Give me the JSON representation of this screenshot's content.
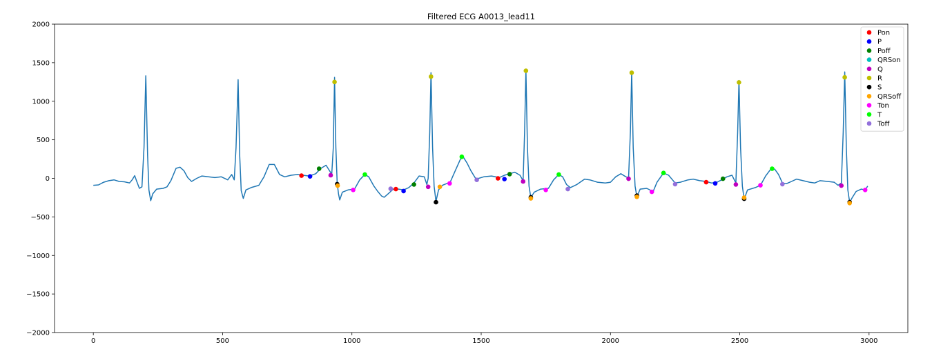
{
  "chart_data": {
    "type": "line",
    "title": "Filtered ECG A0013_lead11",
    "xlabel": "",
    "ylabel": "",
    "xlim": [
      -150,
      3150
    ],
    "ylim": [
      -2000,
      2000
    ],
    "x_ticks": [
      0,
      500,
      1000,
      1500,
      2000,
      2500,
      3000
    ],
    "y_ticks": [
      -2000,
      -1500,
      -1000,
      -500,
      0,
      500,
      1000,
      1500,
      2000
    ],
    "grid": false,
    "legend_position": "top-right",
    "line_color": "#1f77b4",
    "signal": {
      "name": "",
      "points": [
        [
          0,
          -90
        ],
        [
          20,
          -85
        ],
        [
          40,
          -50
        ],
        [
          60,
          -30
        ],
        [
          80,
          -20
        ],
        [
          100,
          -40
        ],
        [
          120,
          -45
        ],
        [
          140,
          -60
        ],
        [
          150,
          -20
        ],
        [
          160,
          35
        ],
        [
          168,
          -40
        ],
        [
          178,
          -130
        ],
        [
          188,
          -110
        ],
        [
          196,
          400
        ],
        [
          203,
          1330
        ],
        [
          210,
          300
        ],
        [
          215,
          -150
        ],
        [
          222,
          -290
        ],
        [
          230,
          -200
        ],
        [
          245,
          -140
        ],
        [
          270,
          -130
        ],
        [
          285,
          -110
        ],
        [
          300,
          -30
        ],
        [
          320,
          130
        ],
        [
          335,
          145
        ],
        [
          350,
          100
        ],
        [
          365,
          10
        ],
        [
          380,
          -40
        ],
        [
          400,
          0
        ],
        [
          420,
          30
        ],
        [
          445,
          20
        ],
        [
          470,
          10
        ],
        [
          495,
          20
        ],
        [
          520,
          -20
        ],
        [
          535,
          50
        ],
        [
          545,
          -20
        ],
        [
          552,
          400
        ],
        [
          560,
          1280
        ],
        [
          566,
          300
        ],
        [
          572,
          -160
        ],
        [
          580,
          -260
        ],
        [
          590,
          -150
        ],
        [
          610,
          -120
        ],
        [
          640,
          -90
        ],
        [
          660,
          20
        ],
        [
          680,
          180
        ],
        [
          700,
          180
        ],
        [
          720,
          50
        ],
        [
          740,
          20
        ],
        [
          765,
          40
        ],
        [
          790,
          50
        ],
        [
          810,
          40
        ],
        [
          835,
          30
        ],
        [
          860,
          60
        ],
        [
          880,
          130
        ],
        [
          900,
          170
        ],
        [
          915,
          90
        ],
        [
          922,
          50
        ],
        [
          928,
          400
        ],
        [
          933,
          1310
        ],
        [
          938,
          400
        ],
        [
          943,
          -60
        ],
        [
          948,
          -200
        ],
        [
          953,
          -280
        ],
        [
          963,
          -180
        ],
        [
          985,
          -150
        ],
        [
          1010,
          -140
        ],
        [
          1030,
          -20
        ],
        [
          1050,
          50
        ],
        [
          1065,
          20
        ],
        [
          1085,
          -100
        ],
        [
          1100,
          -170
        ],
        [
          1115,
          -230
        ],
        [
          1125,
          -245
        ],
        [
          1140,
          -200
        ],
        [
          1160,
          -140
        ],
        [
          1180,
          -140
        ],
        [
          1200,
          -150
        ],
        [
          1220,
          -120
        ],
        [
          1240,
          -60
        ],
        [
          1260,
          30
        ],
        [
          1280,
          20
        ],
        [
          1290,
          -80
        ],
        [
          1295,
          0
        ],
        [
          1301,
          600
        ],
        [
          1306,
          1370
        ],
        [
          1312,
          400
        ],
        [
          1318,
          -100
        ],
        [
          1325,
          -300
        ],
        [
          1335,
          -150
        ],
        [
          1350,
          -90
        ],
        [
          1380,
          -50
        ],
        [
          1400,
          100
        ],
        [
          1420,
          250
        ],
        [
          1432,
          270
        ],
        [
          1445,
          200
        ],
        [
          1460,
          100
        ],
        [
          1480,
          -10
        ],
        [
          1510,
          20
        ],
        [
          1540,
          30
        ],
        [
          1570,
          10
        ],
        [
          1590,
          40
        ],
        [
          1610,
          60
        ],
        [
          1630,
          80
        ],
        [
          1650,
          40
        ],
        [
          1662,
          -30
        ],
        [
          1668,
          600
        ],
        [
          1673,
          1410
        ],
        [
          1679,
          400
        ],
        [
          1685,
          -100
        ],
        [
          1692,
          -250
        ],
        [
          1705,
          -180
        ],
        [
          1730,
          -140
        ],
        [
          1760,
          -130
        ],
        [
          1780,
          -20
        ],
        [
          1800,
          50
        ],
        [
          1815,
          20
        ],
        [
          1830,
          -80
        ],
        [
          1845,
          -120
        ],
        [
          1870,
          -80
        ],
        [
          1900,
          -10
        ],
        [
          1920,
          -20
        ],
        [
          1950,
          -50
        ],
        [
          1980,
          -60
        ],
        [
          2000,
          -50
        ],
        [
          2020,
          20
        ],
        [
          2040,
          60
        ],
        [
          2060,
          20
        ],
        [
          2070,
          10
        ],
        [
          2077,
          600
        ],
        [
          2082,
          1380
        ],
        [
          2088,
          400
        ],
        [
          2095,
          -100
        ],
        [
          2102,
          -240
        ],
        [
          2115,
          -140
        ],
        [
          2140,
          -130
        ],
        [
          2165,
          -170
        ],
        [
          2180,
          -50
        ],
        [
          2205,
          70
        ],
        [
          2225,
          40
        ],
        [
          2250,
          -60
        ],
        [
          2270,
          -50
        ],
        [
          2300,
          -20
        ],
        [
          2320,
          -10
        ],
        [
          2345,
          -30
        ],
        [
          2370,
          -40
        ],
        [
          2390,
          -60
        ],
        [
          2410,
          -55
        ],
        [
          2430,
          -20
        ],
        [
          2450,
          20
        ],
        [
          2470,
          40
        ],
        [
          2485,
          -60
        ],
        [
          2492,
          600
        ],
        [
          2497,
          1270
        ],
        [
          2503,
          400
        ],
        [
          2510,
          -100
        ],
        [
          2517,
          -270
        ],
        [
          2530,
          -150
        ],
        [
          2560,
          -120
        ],
        [
          2580,
          -90
        ],
        [
          2600,
          30
        ],
        [
          2620,
          120
        ],
        [
          2635,
          120
        ],
        [
          2650,
          50
        ],
        [
          2665,
          -60
        ],
        [
          2680,
          -70
        ],
        [
          2700,
          -40
        ],
        [
          2720,
          -10
        ],
        [
          2745,
          -30
        ],
        [
          2770,
          -50
        ],
        [
          2790,
          -60
        ],
        [
          2810,
          -30
        ],
        [
          2840,
          -40
        ],
        [
          2865,
          -50
        ],
        [
          2880,
          -90
        ],
        [
          2893,
          -60
        ],
        [
          2900,
          600
        ],
        [
          2906,
          1380
        ],
        [
          2912,
          400
        ],
        [
          2918,
          -150
        ],
        [
          2925,
          -310
        ],
        [
          2935,
          -250
        ],
        [
          2950,
          -170
        ],
        [
          2970,
          -140
        ],
        [
          2985,
          -150
        ],
        [
          2995,
          -100
        ]
      ]
    },
    "series": [
      {
        "name": "Pon",
        "color": "#ff0000",
        "points": [
          [
            805,
            35
          ],
          [
            1170,
            -140
          ],
          [
            1565,
            0
          ],
          [
            2370,
            -50
          ]
        ]
      },
      {
        "name": "P",
        "color": "#0000ff",
        "points": [
          [
            838,
            25
          ],
          [
            1200,
            -165
          ],
          [
            1590,
            -10
          ],
          [
            2405,
            -65
          ]
        ]
      },
      {
        "name": "Poff",
        "color": "#008000",
        "points": [
          [
            873,
            125
          ],
          [
            1240,
            -80
          ],
          [
            1610,
            55
          ],
          [
            2435,
            -5
          ]
        ]
      },
      {
        "name": "QRSon",
        "color": "#00bfbf",
        "points": []
      },
      {
        "name": "Q",
        "color": "#bf00bf",
        "points": [
          [
            918,
            40
          ],
          [
            1295,
            -110
          ],
          [
            1662,
            -40
          ],
          [
            2070,
            -5
          ],
          [
            2485,
            -80
          ],
          [
            2893,
            -95
          ]
        ]
      },
      {
        "name": "R",
        "color": "#bfbf00",
        "points": [
          [
            933,
            1250
          ],
          [
            1306,
            1320
          ],
          [
            1673,
            1395
          ],
          [
            2082,
            1370
          ],
          [
            2497,
            1245
          ],
          [
            2906,
            1310
          ]
        ]
      },
      {
        "name": "S",
        "color": "#000000",
        "points": [
          [
            943,
            -75
          ],
          [
            1325,
            -310
          ],
          [
            1692,
            -245
          ],
          [
            2102,
            -225
          ],
          [
            2517,
            -265
          ],
          [
            2925,
            -310
          ]
        ]
      },
      {
        "name": "QRSoff",
        "color": "#ffa500",
        "points": [
          [
            945,
            -95
          ],
          [
            1340,
            -110
          ],
          [
            1692,
            -260
          ],
          [
            2102,
            -240
          ],
          [
            2517,
            -250
          ],
          [
            2925,
            -320
          ]
        ]
      },
      {
        "name": "Ton",
        "color": "#ff00ff",
        "points": [
          [
            1005,
            -150
          ],
          [
            1378,
            -65
          ],
          [
            1750,
            -150
          ],
          [
            2160,
            -175
          ],
          [
            2580,
            -90
          ],
          [
            2985,
            -150
          ]
        ]
      },
      {
        "name": "T",
        "color": "#00ff00",
        "points": [
          [
            1050,
            50
          ],
          [
            1425,
            280
          ],
          [
            1800,
            50
          ],
          [
            2205,
            70
          ],
          [
            2625,
            125
          ]
        ]
      },
      {
        "name": "Toff",
        "color": "#9370db",
        "points": [
          [
            1150,
            -135
          ],
          [
            1483,
            -20
          ],
          [
            1835,
            -140
          ],
          [
            2250,
            -75
          ],
          [
            2665,
            -75
          ]
        ]
      }
    ]
  }
}
